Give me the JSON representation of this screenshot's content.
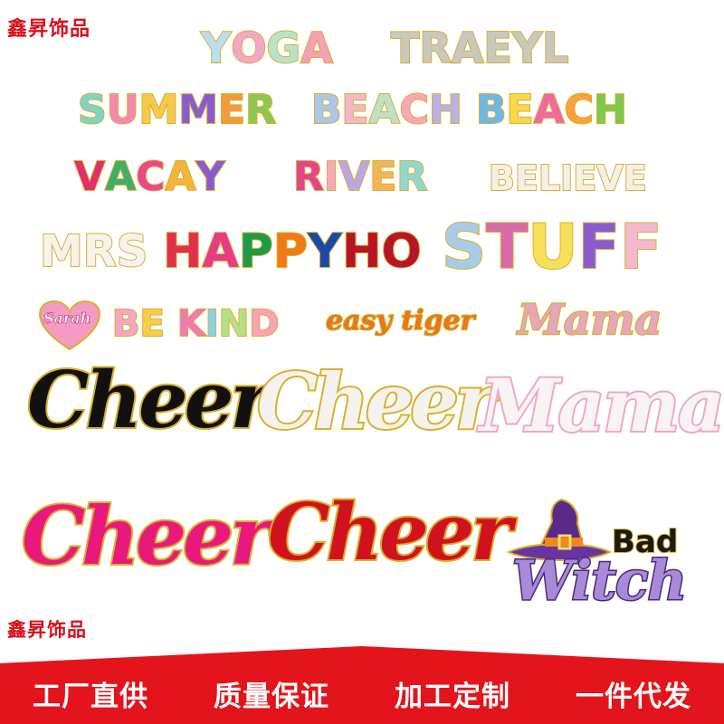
{
  "brand": {
    "top": "鑫昇饰品",
    "bottom": "鑫昇饰品"
  },
  "patches": {
    "yoga": "YOGA",
    "traeyl": "TRAEYL",
    "summer": "SUMMER",
    "beach1": "BEACH",
    "beach2": "BEACH",
    "vacay": "VACAY",
    "river": "RIVER",
    "believe": "BELIEVE",
    "mrs": "MRS",
    "happy": "HAPPY",
    "ho": "HO",
    "stuff": "STUFF",
    "sarah": "Sarah",
    "bekind": "BE KIND",
    "easytiger": "easy tiger",
    "mama_small": "Mama",
    "cheer_black": "Cheer",
    "cheer_white": "Cheer",
    "mama_large": "Mama",
    "cheer_pink": "Cheer",
    "cheer_red": "Cheer",
    "bad": "Bad",
    "witch": "Witch"
  },
  "slogans": [
    "工厂直供",
    "质量保证",
    "加工定制",
    "一件代发"
  ],
  "colors": {
    "brand_red": "#d8101a",
    "banner_red": "#e4141c",
    "gold_trim": "#d9b02b",
    "black_patch": "#111111",
    "white_patch": "#f4f2ee",
    "pink_patch": "#e8187c",
    "red_patch": "#d0121e",
    "purple_witch": "#a98ad8"
  }
}
